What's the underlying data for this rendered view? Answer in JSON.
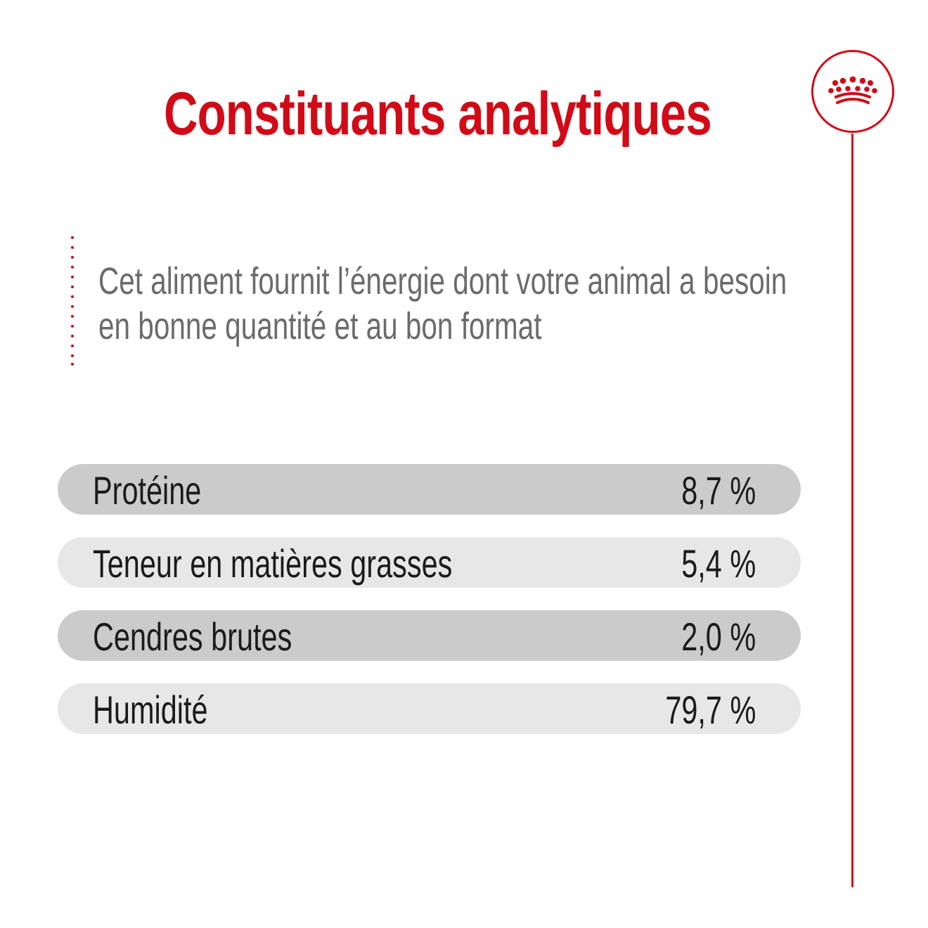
{
  "page": {
    "title": "Constituants analytiques",
    "intro": [
      "Cet aliment fournit l’énergie dont votre animal a besoin",
      "en bonne quantité et au bon format"
    ]
  },
  "colors": {
    "brand_red": "#d20a17",
    "intro_text": "#6b6b6b",
    "row_dark": "#cbcbcb",
    "row_light": "#e7e7e7",
    "row_text": "#1b1b1b"
  },
  "icons": {
    "logo": "crown-icon"
  },
  "analysis": [
    {
      "label": "Protéine",
      "value": "8,7 %"
    },
    {
      "label": "Teneur en matières grasses",
      "value": "5,4 %"
    },
    {
      "label": "Cendres brutes",
      "value": "2,0 %"
    },
    {
      "label": "Humidité",
      "value": "79,7 %"
    }
  ]
}
